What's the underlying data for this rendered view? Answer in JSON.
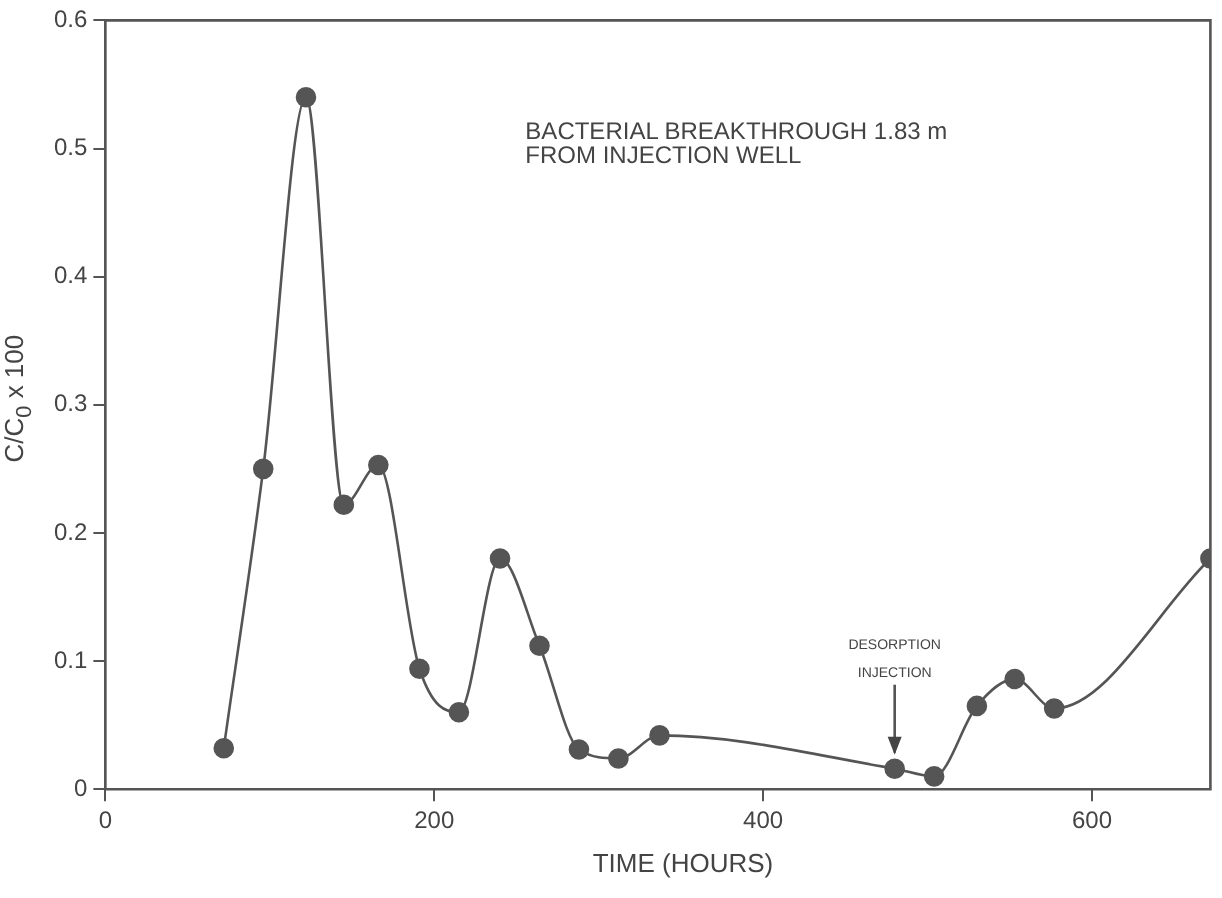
{
  "chart_data": {
    "type": "line",
    "xlabel": "TIME (HOURS)",
    "ylabel": "C/C$_{0}$ x 100",
    "x": [
      72,
      96,
      122,
      145,
      166,
      191,
      215,
      240,
      264,
      288,
      312,
      337,
      480,
      504,
      530,
      553,
      577,
      672
    ],
    "series": [
      {
        "color": "#555555",
        "values": [
          0.032,
          0.25,
          0.54,
          0.222,
          0.253,
          0.094,
          0.06,
          0.18,
          0.112,
          0.031,
          0.024,
          0.042,
          0.016,
          0.01,
          0.065,
          0.086,
          0.063,
          0.18
        ]
      }
    ],
    "xlim": [
      0,
      672
    ],
    "xticks": [
      0,
      200,
      400,
      600
    ],
    "ylim": [
      0,
      0.6
    ],
    "yticks": [
      0,
      0.1,
      0.2,
      0.3,
      0.4,
      0.5,
      0.6
    ],
    "annotations": [
      "BACTERIAL BREAKTHROUGH 1.83 m\nFROM INJECTION WELL",
      {
        "text": "DESORPTION\nINJECTION",
        "x": 480,
        "y": 0.016
      }
    ],
    "grid": false,
    "legend": false,
    "marker": "circle",
    "line_style": "solid"
  }
}
